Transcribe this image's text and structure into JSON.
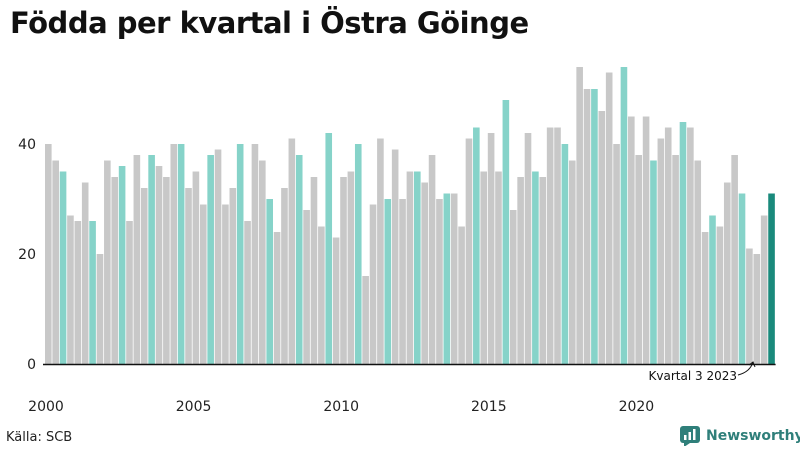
{
  "chart_data": {
    "type": "bar",
    "title": "Födda per kvartal i Östra Göinge",
    "xlabel": "",
    "ylabel": "",
    "ylim": [
      0,
      56
    ],
    "yticks": [
      "0",
      "20",
      "40"
    ],
    "xticks": [
      {
        "label": "2000",
        "year": 2000
      },
      {
        "label": "2005",
        "year": 2005
      },
      {
        "label": "2010",
        "year": 2010
      },
      {
        "label": "2015",
        "year": 2015
      },
      {
        "label": "2020",
        "year": 2020
      }
    ],
    "start_year": 2000,
    "values": [
      40,
      37,
      35,
      27,
      26,
      33,
      26,
      20,
      37,
      34,
      36,
      26,
      38,
      32,
      38,
      36,
      34,
      40,
      40,
      32,
      35,
      29,
      38,
      39,
      29,
      32,
      40,
      26,
      40,
      37,
      30,
      24,
      32,
      41,
      38,
      28,
      34,
      25,
      42,
      23,
      34,
      35,
      40,
      16,
      29,
      41,
      30,
      39,
      30,
      35,
      35,
      33,
      38,
      30,
      31,
      31,
      25,
      41,
      43,
      35,
      42,
      35,
      48,
      28,
      34,
      42,
      35,
      34,
      43,
      43,
      40,
      37,
      54,
      50,
      50,
      46,
      53,
      40,
      54,
      45,
      38,
      45,
      37,
      41,
      43,
      38,
      44,
      43,
      37,
      24,
      27,
      25,
      33,
      38,
      31,
      21,
      20,
      27,
      31
    ],
    "colors": {
      "default": "#c8c8c8",
      "q3": "#86d3c9",
      "latest": "#1a8a7c",
      "axis": "#111111"
    },
    "annotation": "Kvartal 3 2023",
    "source": "Källa: SCB",
    "brand": "Newsworthy"
  }
}
